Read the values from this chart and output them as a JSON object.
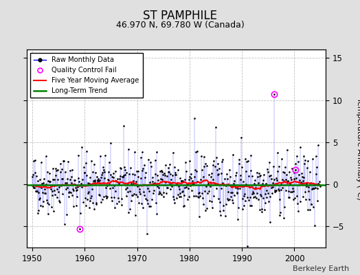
{
  "title": "ST PAMPHILE",
  "subtitle": "46.970 N, 69.780 W (Canada)",
  "ylabel_right": "Temperature Anomaly (°C)",
  "credit": "Berkeley Earth",
  "xlim": [
    1949,
    2006
  ],
  "ylim": [
    -7.5,
    16
  ],
  "yticks": [
    -5,
    0,
    5,
    10,
    15
  ],
  "xticks": [
    1950,
    1960,
    1970,
    1980,
    1990,
    2000
  ],
  "bg_color": "#e0e0e0",
  "plot_bg_color": "#ffffff",
  "grid_color": "#b0b0b0",
  "seed": 42,
  "start_year": 1950.0,
  "n_months": 660,
  "qc_fail_year_1": 1959.0,
  "qc_fail_val_1": -5.3,
  "qc_fail_year_2": 1996.08,
  "qc_fail_val_2": 10.7,
  "qc_fail_year_3": 2000.17,
  "qc_fail_val_3": 1.7,
  "spike1_idx": 372,
  "spike1_val": 7.8,
  "spike2_idx": 420,
  "spike2_val": 6.8,
  "spike3_idx": 492,
  "spike3_val": -7.3
}
